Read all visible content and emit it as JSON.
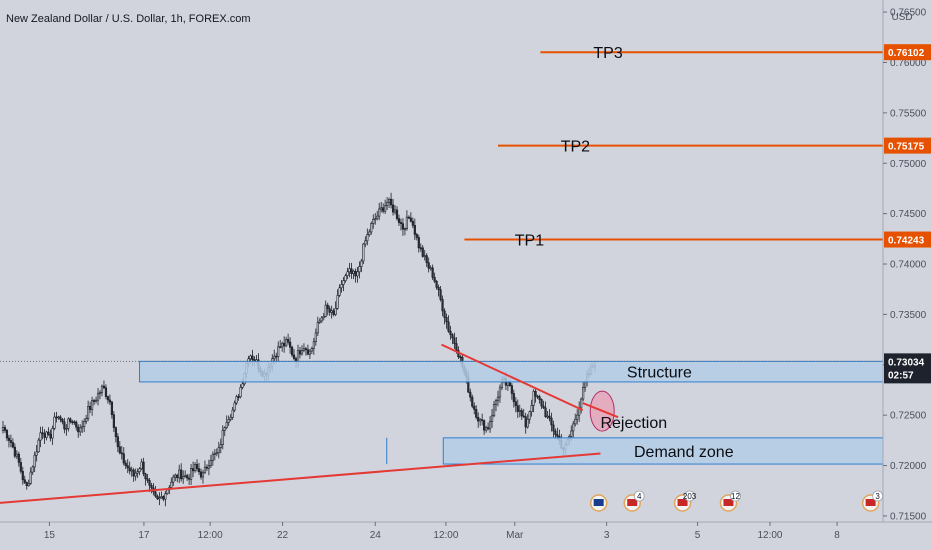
{
  "colors": {
    "background": "#d1d4dc",
    "up_candle": "#d6d9df",
    "down_candle": "#2a2e39",
    "wick": "#1a1d24",
    "tp_line": "#e65100",
    "trend_line": "#e53935",
    "zone_fill": "#b3cde6",
    "zone_border": "#2f7fd2",
    "price_tag": "#1e222d",
    "rejection_fill": "#e8a0b5",
    "rejection_stroke": "#b0306a"
  },
  "chart_data": {
    "type": "candlestick",
    "title": "New Zealand Dollar / U.S. Dollar, 1h, FOREX.com",
    "currency_label": "USD",
    "y_range": [
      0.7144,
      0.7662
    ],
    "y_ticks": [
      "0.71500",
      "0.72000",
      "0.72500",
      "0.73000",
      "0.73500",
      "0.74000",
      "0.74500",
      "0.75000",
      "0.75500",
      "0.76000",
      "0.76500"
    ],
    "x_ticks": [
      "15",
      "17",
      "12:00",
      "22",
      "24",
      "12:00",
      "Mar",
      "3",
      "5",
      "12:00",
      "8"
    ],
    "anchors": [
      [
        0.7238,
        0.7224,
        0.7204,
        0.7176,
        0.7205,
        0.7236,
        0.7226,
        0.7252,
        0.7238,
        0.7246,
        0.7234,
        0.7254
      ],
      [
        0.7266,
        0.7278,
        0.7262,
        0.7214,
        0.72,
        0.719,
        0.7202,
        0.7178,
        0.7164,
        0.7172,
        0.7186,
        0.7192
      ],
      [
        0.7188,
        0.7198,
        0.719,
        0.7208,
        0.7212,
        0.7246,
        0.7256,
        0.728,
        0.7312,
        0.7302,
        0.729,
        0.7306
      ],
      [
        0.7318,
        0.7322,
        0.7305,
        0.732,
        0.7312,
        0.734,
        0.7356,
        0.7348,
        0.738,
        0.7392,
        0.7386,
        0.742
      ],
      [
        0.744,
        0.7452,
        0.7462,
        0.7452,
        0.7436,
        0.7448,
        0.742,
        0.7402,
        0.7388,
        0.7362,
        0.7334,
        0.7318
      ],
      [
        0.7292,
        0.7262,
        0.7244,
        0.7236,
        0.7262,
        0.7284,
        0.7276,
        0.7256,
        0.724,
        0.727,
        0.7262,
        0.7244
      ],
      [
        0.723,
        0.7215,
        0.7236,
        0.7262,
        0.7288,
        0.7303
      ]
    ],
    "last_price": "0.73034",
    "countdown": "02:57",
    "levels": [
      {
        "label": "TP3",
        "value": 0.76102,
        "tag": "0.76102"
      },
      {
        "label": "TP2",
        "value": 0.75175,
        "tag": "0.75175"
      },
      {
        "label": "TP1",
        "value": 0.74243,
        "tag": "0.74243"
      }
    ],
    "zones": [
      {
        "label": "Structure",
        "top": 0.73034,
        "bottom": 0.7283
      },
      {
        "label": "Demand zone",
        "top": 0.72275,
        "bottom": 0.72015
      }
    ],
    "trendlines": [
      {
        "name": "support",
        "from": [
          0,
          0.7163
        ],
        "to": [
          0.68,
          0.7212
        ]
      },
      {
        "name": "resistance",
        "from": [
          0.5,
          0.732
        ],
        "to": [
          0.66,
          0.7255
        ]
      }
    ],
    "annotation": "Rejection",
    "events": [
      {
        "badge": ""
      },
      {
        "badge": "4"
      },
      {
        "badge": "203"
      },
      {
        "badge": "12"
      },
      {
        "badge": "3"
      }
    ]
  }
}
